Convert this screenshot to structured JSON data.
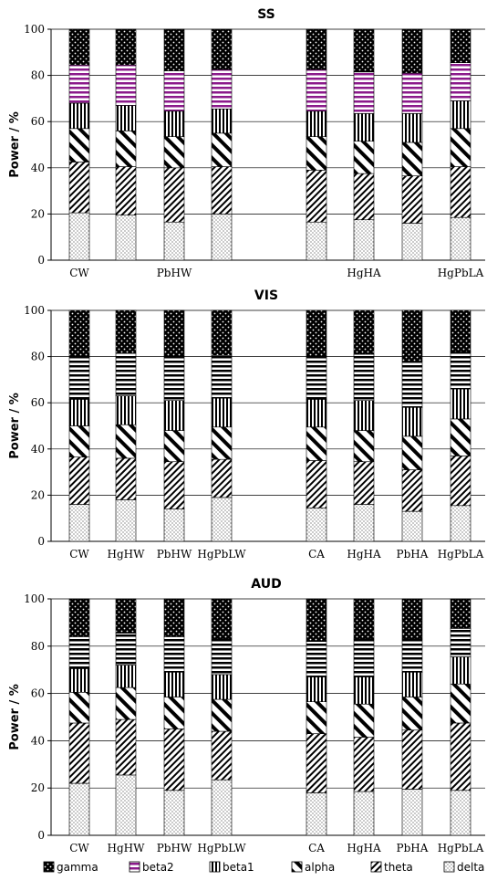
{
  "chart_data": [
    {
      "type": "bar",
      "stacked": true,
      "title": "SS",
      "ylabel": "Power / %",
      "ylim": [
        0,
        100
      ],
      "yticks": [
        0,
        20,
        40,
        60,
        80,
        100
      ],
      "grid": true,
      "categories": [
        "CW",
        "HgHW",
        "PbHW",
        "HgPbLW",
        "CA",
        "HgHA",
        "PbHA",
        "HgPbLA"
      ],
      "category_labels": [
        "CW",
        "",
        "PbHW",
        "",
        "",
        "HgHA",
        "",
        "HgPbLA"
      ],
      "series": [
        {
          "name": "delta",
          "values": [
            20.5,
            19.5,
            16.5,
            20,
            16.5,
            17.5,
            16,
            18.5
          ]
        },
        {
          "name": "theta",
          "values": [
            22,
            21,
            23.5,
            20.5,
            22.5,
            20,
            20.5,
            22
          ]
        },
        {
          "name": "alpha",
          "values": [
            14.5,
            15.5,
            13.5,
            14.5,
            14.5,
            14,
            14.5,
            16.5
          ]
        },
        {
          "name": "beta1",
          "values": [
            11,
            11,
            11,
            10.5,
            11,
            12,
            12.5,
            12
          ]
        },
        {
          "name": "beta2",
          "values": [
            16.5,
            17.5,
            17.5,
            17,
            18,
            18,
            17.5,
            16.5
          ]
        },
        {
          "name": "gamma",
          "values": [
            15.5,
            15.5,
            18,
            17.5,
            17.5,
            18.5,
            19,
            14.5
          ]
        }
      ]
    },
    {
      "type": "bar",
      "stacked": true,
      "title": "VIS",
      "ylabel": "Power / %",
      "ylim": [
        0,
        100
      ],
      "yticks": [
        0,
        20,
        40,
        60,
        80,
        100
      ],
      "grid": true,
      "categories": [
        "CW",
        "HgHW",
        "PbHW",
        "HgPbLW",
        "CA",
        "HgHA",
        "PbHA",
        "HgPbLA"
      ],
      "category_labels": [
        "CW",
        "HgHW",
        "PbHW",
        "HgPbLW",
        "CA",
        "HgHA",
        "PbHA",
        "HgPbLA"
      ],
      "series": [
        {
          "name": "delta",
          "values": [
            16,
            18,
            14,
            19,
            14.5,
            16,
            13,
            15.5
          ]
        },
        {
          "name": "theta",
          "values": [
            20.5,
            18,
            20.5,
            16.5,
            20.5,
            18.5,
            18,
            21.5
          ]
        },
        {
          "name": "alpha",
          "values": [
            13.5,
            14.5,
            13.5,
            14,
            14.5,
            13.5,
            14.5,
            16
          ]
        },
        {
          "name": "beta1",
          "values": [
            11.5,
            12.5,
            13,
            12.5,
            12,
            13,
            12.5,
            13
          ]
        },
        {
          "name": "beta2",
          "values": [
            18.5,
            18.5,
            19,
            18.5,
            18.5,
            20,
            20,
            16
          ]
        },
        {
          "name": "gamma",
          "values": [
            20,
            18.5,
            20,
            19.5,
            20,
            19,
            22,
            18
          ]
        }
      ]
    },
    {
      "type": "bar",
      "stacked": true,
      "title": "AUD",
      "ylabel": "Power / %",
      "ylim": [
        0,
        100
      ],
      "yticks": [
        0,
        20,
        40,
        60,
        80,
        100
      ],
      "grid": true,
      "categories": [
        "CW",
        "HgHW",
        "PbHW",
        "HgPbLW",
        "CA",
        "HgHA",
        "PbHA",
        "HgPbLA"
      ],
      "category_labels": [
        "CW",
        "HgHW",
        "PbHW",
        "HgPbLW",
        "CA",
        "HgHA",
        "PbHA",
        "HgPbLA"
      ],
      "series": [
        {
          "name": "delta",
          "values": [
            22,
            25.5,
            19,
            23.5,
            18,
            18.5,
            19.5,
            19
          ]
        },
        {
          "name": "theta",
          "values": [
            25.5,
            23.5,
            26,
            20.5,
            25,
            23,
            25,
            28.5
          ]
        },
        {
          "name": "alpha",
          "values": [
            13,
            13.5,
            13.5,
            13.5,
            13.5,
            14,
            14,
            16.5
          ]
        },
        {
          "name": "beta1",
          "values": [
            10,
            9.5,
            10.5,
            10.5,
            10.5,
            11.5,
            10.5,
            11.5
          ]
        },
        {
          "name": "beta2",
          "values": [
            13.5,
            13.5,
            15,
            15,
            15,
            16,
            14,
            12
          ]
        },
        {
          "name": "gamma",
          "values": [
            16,
            14.5,
            16,
            17,
            18,
            17,
            17,
            12.5
          ]
        }
      ]
    }
  ],
  "legend": {
    "placement": "bottom",
    "items": [
      {
        "name": "gamma",
        "pattern": "dots-dark"
      },
      {
        "name": "beta2",
        "pattern": "hstripes-purple"
      },
      {
        "name": "beta1",
        "pattern": "vstripes"
      },
      {
        "name": "alpha",
        "pattern": "diag-wide"
      },
      {
        "name": "theta",
        "pattern": "diag-narrow"
      },
      {
        "name": "delta",
        "pattern": "dots-light"
      }
    ]
  },
  "colors": {
    "beta2_stripe": "#8b1a8b",
    "ink": "#000000",
    "grid": "#000000"
  }
}
